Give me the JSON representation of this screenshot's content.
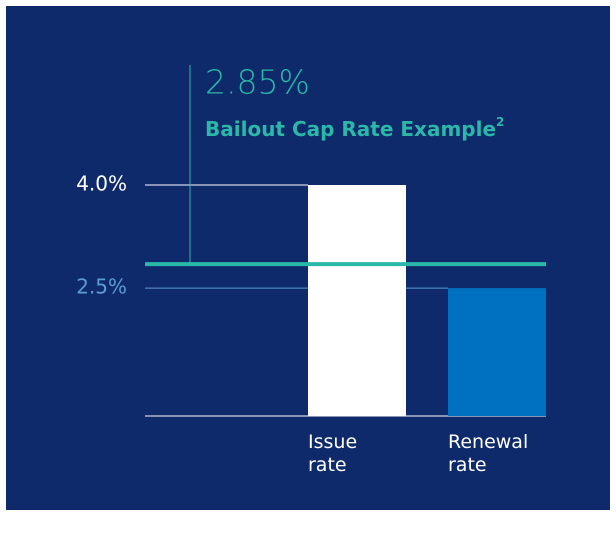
{
  "chart_data": {
    "type": "bar",
    "categories": [
      "Issue rate",
      "Renewal rate"
    ],
    "values": [
      4.0,
      2.5
    ],
    "colors": [
      "#ffffff",
      "#0070c0"
    ],
    "ylim": [
      0.64,
      4.0
    ],
    "yticks": [
      {
        "value": 4.0,
        "label": "4.0%"
      },
      {
        "value": 2.5,
        "label": "2.5%"
      }
    ],
    "tick_colors": [
      "#ffffff",
      "#5b9bd5"
    ],
    "reference": {
      "value": 2.85,
      "label": "2.85%",
      "text": "Bailout Cap Rate Example",
      "footnote": "2",
      "color": "#2bb8a8"
    }
  }
}
